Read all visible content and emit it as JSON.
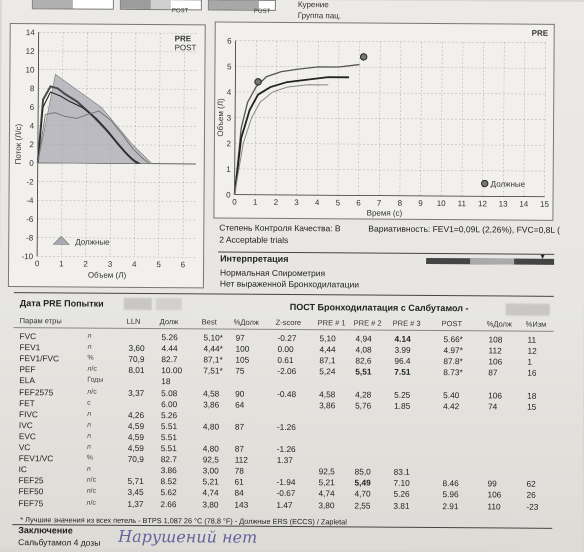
{
  "header": {
    "post_a": "POST",
    "post_b": "POST",
    "line1": "Курение",
    "line2": "Группа пац."
  },
  "flow_chart": {
    "type": "line",
    "ylabel": "Поток (Л/с)",
    "xlabel": "Объем (Л)",
    "pre_label": "PRE",
    "post_label": "POST",
    "legend_predicted": "Должные",
    "y_ticks": [
      "14",
      "12",
      "10",
      "8",
      "6",
      "4",
      "2",
      "0",
      "-2",
      "-4",
      "-6",
      "-8",
      "-10"
    ],
    "x_ticks": [
      "0",
      "1",
      "2",
      "3",
      "4",
      "5",
      "6"
    ],
    "xlim": [
      0,
      6.5
    ],
    "ylim": [
      -10,
      14
    ],
    "series": [
      {
        "x": [
          0,
          0.2,
          0.5,
          0.8,
          1.1,
          1.6,
          2.2,
          2.8,
          3.2,
          3.6,
          3.9,
          4.1
        ],
        "y": [
          0,
          6.8,
          8.2,
          8.0,
          7.4,
          6.6,
          5.2,
          3.6,
          2.4,
          1.2,
          0.4,
          0
        ]
      },
      {
        "x": [
          0,
          0.2,
          0.5,
          0.9,
          1.3,
          1.8,
          2.4,
          2.9,
          3.3,
          3.7,
          4.0,
          4.2
        ],
        "y": [
          0,
          6.0,
          7.6,
          7.2,
          6.6,
          6.0,
          4.8,
          3.4,
          2.0,
          0.9,
          0.3,
          0
        ]
      },
      {
        "x": [
          0,
          0.3,
          0.7,
          1.1,
          1.6,
          2.0,
          2.5,
          3.0,
          3.5,
          3.9,
          4.3,
          4.6
        ],
        "y": [
          0,
          5.2,
          5.4,
          5.0,
          4.8,
          5.2,
          5.6,
          4.6,
          3.0,
          1.6,
          0.6,
          0
        ]
      }
    ],
    "predicted_shape": {
      "x": [
        0,
        0.7,
        2.6,
        3.9,
        4.7
      ],
      "y": [
        0,
        9.5,
        6.0,
        2.0,
        0
      ]
    }
  },
  "vol_chart": {
    "type": "line",
    "ylabel": "Объем (Л)",
    "xlabel": "Время (с)",
    "pre_label": "PRE",
    "legend_predicted": "Должные",
    "y_ticks": [
      "6",
      "5",
      "4",
      "3",
      "2",
      "1",
      "0"
    ],
    "x_ticks": [
      "0",
      "1",
      "2",
      "3",
      "4",
      "5",
      "6",
      "7",
      "8",
      "9",
      "10",
      "11",
      "12",
      "13",
      "14",
      "15"
    ],
    "xlim": [
      0,
      15
    ],
    "ylim": [
      0,
      6
    ],
    "series": [
      {
        "x": [
          0,
          0.3,
          0.6,
          1.0,
          1.5,
          2.2,
          3.0,
          4.0,
          5.0,
          6.0
        ],
        "y": [
          0,
          2.6,
          3.6,
          4.2,
          4.6,
          4.8,
          4.9,
          5.0,
          5.0,
          5.1
        ]
      },
      {
        "x": [
          0,
          0.3,
          0.7,
          1.1,
          1.7,
          2.5,
          3.5,
          4.5,
          5.5
        ],
        "y": [
          0,
          2.2,
          3.3,
          3.9,
          4.2,
          4.4,
          4.5,
          4.6,
          4.6
        ]
      },
      {
        "x": [
          0,
          0.4,
          0.8,
          1.2,
          1.8,
          2.5,
          3.5,
          4.5
        ],
        "y": [
          0,
          2.0,
          3.0,
          3.6,
          4.0,
          4.2,
          4.3,
          4.3
        ]
      }
    ],
    "predicted_points": [
      {
        "x": 1.1,
        "y": 4.4
      },
      {
        "x": 6.2,
        "y": 5.4
      },
      {
        "x": 12.1,
        "y": 0.5
      }
    ]
  },
  "quality": {
    "grade": "Степень Контроля Качества: B",
    "variability": "Вариативность: FEV1=0,09L (2,26%), FVC=0,8L (",
    "trials": "2 Acceptable trials"
  },
  "interpretation": {
    "title": "Интерпретация",
    "line1": "Нормальная Спирометрия",
    "line2": "Нет выраженной Бронходилатации"
  },
  "table_titles": {
    "pre_date": "Дата PRE Попытки",
    "post": "ПОСТ Бронходилатация с Салбутамол -"
  },
  "columns": [
    "Парам етры",
    "LLN",
    "Долж",
    "Best",
    "%Долж",
    "Z-score",
    "PRE # 1",
    "PRE # 2",
    "PRE # 3",
    "POST",
    "%Долж",
    "%Изм"
  ],
  "rows": [
    {
      "p": "FVC",
      "u": "л",
      "lln": "",
      "pred": "5.26",
      "best": "5,10*",
      "pct": "97",
      "z": "-0.27",
      "p1": "5,10",
      "p2": "4,94",
      "p3": "4.14",
      "post": "5.66*",
      "ppct": "108",
      "chg": "11",
      "b3": true
    },
    {
      "p": "FEV1",
      "u": "л",
      "lln": "3,60",
      "pred": "4.44",
      "best": "4,44*",
      "pct": "100",
      "z": "0.00",
      "p1": "4,44",
      "p2": "4,08",
      "p3": "3.99",
      "post": "4.97*",
      "ppct": "112",
      "chg": "12"
    },
    {
      "p": "FEV1/FVC",
      "u": "%",
      "lln": "70,9",
      "pred": "82.7",
      "best": "87,1*",
      "pct": "105",
      "z": "0.61",
      "p1": "87,1",
      "p2": "82,6",
      "p3": "96.4",
      "post": "87.8*",
      "ppct": "106",
      "chg": "1"
    },
    {
      "p": "PEF",
      "u": "л/с",
      "lln": "8,01",
      "pred": "10.00",
      "best": "7,51*",
      "pct": "75",
      "z": "-2.06",
      "p1": "5,24",
      "p2": "5,51",
      "p3": "7.51",
      "post": "8.73*",
      "ppct": "87",
      "chg": "16",
      "b2": true,
      "b3": true
    },
    {
      "p": "ELA",
      "u": "Годы",
      "lln": "",
      "pred": "18",
      "best": "",
      "pct": "",
      "z": "",
      "p1": "",
      "p2": "",
      "p3": "",
      "post": "",
      "ppct": "",
      "chg": ""
    },
    {
      "p": "FEF2575",
      "u": "л/с",
      "lln": "3,37",
      "pred": "5.08",
      "best": "4,58",
      "pct": "90",
      "z": "-0.48",
      "p1": "4,58",
      "p2": "4,28",
      "p3": "5.25",
      "post": "5.40",
      "ppct": "106",
      "chg": "18"
    },
    {
      "p": "FET",
      "u": "с",
      "lln": "",
      "pred": "6.00",
      "best": "3,86",
      "pct": "64",
      "z": "",
      "p1": "3,86",
      "p2": "5,76",
      "p3": "1.85",
      "post": "4.42",
      "ppct": "74",
      "chg": "15"
    },
    {
      "p": "FIVC",
      "u": "л",
      "lln": "4,26",
      "pred": "5.26",
      "best": "",
      "pct": "",
      "z": "",
      "p1": "",
      "p2": "",
      "p3": "",
      "post": "",
      "ppct": "",
      "chg": ""
    },
    {
      "p": "IVC",
      "u": "л",
      "lln": "4,59",
      "pred": "5.51",
      "best": "4,80",
      "pct": "87",
      "z": "-1.26",
      "p1": "",
      "p2": "",
      "p3": "",
      "post": "",
      "ppct": "",
      "chg": ""
    },
    {
      "p": "EVC",
      "u": "л",
      "lln": "4,59",
      "pred": "5.51",
      "best": "",
      "pct": "",
      "z": "",
      "p1": "",
      "p2": "",
      "p3": "",
      "post": "",
      "ppct": "",
      "chg": ""
    },
    {
      "p": "VC",
      "u": "л",
      "lln": "4,59",
      "pred": "5.51",
      "best": "4,80",
      "pct": "87",
      "z": "-1.26",
      "p1": "",
      "p2": "",
      "p3": "",
      "post": "",
      "ppct": "",
      "chg": ""
    },
    {
      "p": "FEV1/VC",
      "u": "%",
      "lln": "70,9",
      "pred": "82.7",
      "best": "92,5",
      "pct": "112",
      "z": "1.37",
      "p1": "",
      "p2": "",
      "p3": "",
      "post": "",
      "ppct": "",
      "chg": ""
    },
    {
      "p": "IC",
      "u": "л",
      "lln": "",
      "pred": "3.86",
      "best": "3,00",
      "pct": "78",
      "z": "",
      "p1": "92,5",
      "p2": "85,0",
      "p3": "83.1",
      "post": "",
      "ppct": "",
      "chg": ""
    },
    {
      "p": "FEF25",
      "u": "л/с",
      "lln": "5,71",
      "pred": "8.52",
      "best": "5,21",
      "pct": "61",
      "z": "-1.94",
      "p1": "5,21",
      "p2": "5,49",
      "p3": "7.10",
      "post": "8.46",
      "ppct": "99",
      "chg": "62",
      "b2": true
    },
    {
      "p": "FEF50",
      "u": "л/с",
      "lln": "3,45",
      "pred": "5.62",
      "best": "4,74",
      "pct": "84",
      "z": "-0.67",
      "p1": "4,74",
      "p2": "4,70",
      "p3": "5.26",
      "post": "5.96",
      "ppct": "106",
      "chg": "26"
    },
    {
      "p": "FEF75",
      "u": "л/с",
      "lln": "1,37",
      "pred": "2.66",
      "best": "3,80",
      "pct": "143",
      "z": "1.47",
      "p1": "3,80",
      "p2": "2,55",
      "p3": "3.81",
      "post": "2.91",
      "ppct": "110",
      "chg": "-23"
    }
  ],
  "footnote": "* Лучшие значения из всех петель - BTPS 1,087  26 °C (78,8 °F) - Должные ERS (ECCS)  / Zapletal",
  "conclusion": {
    "title": "Заключение",
    "line": "Сальбутамол 4 дозы"
  }
}
